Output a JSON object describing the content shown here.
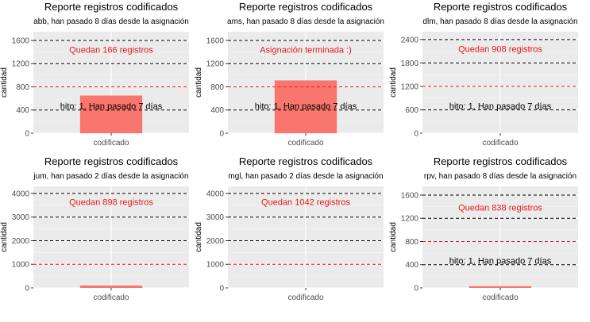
{
  "chart_data": [
    {
      "type": "bar",
      "title": "Reporte registros codificados",
      "subtitle": "abb, han pasado 8 días desde la asignación",
      "xlabel": "",
      "ylabel": "cantidad",
      "categories": [
        "codificado"
      ],
      "values": [
        650
      ],
      "ylim": [
        0,
        1750
      ],
      "yticks": [
        0,
        400,
        800,
        1200,
        1600
      ],
      "ytick_labels": [
        "0",
        "400",
        "800",
        "1200",
        "1600"
      ],
      "hlines_black": [
        400,
        1200,
        1600
      ],
      "hlines_red": [
        800
      ],
      "status_text": "Quedan 166 registros",
      "status_y": 1440,
      "hito_text": "hito: 1. Han pasado 7 días",
      "hito_y": 470,
      "bar_color": "#F8766D",
      "panel_bg": "#EBEBEB",
      "red_color": "#E41A1C",
      "grid": true
    },
    {
      "type": "bar",
      "title": "Reporte registros codificados",
      "subtitle": "ams, han pasado 8 días desde la asignación",
      "xlabel": "",
      "ylabel": "cantidad",
      "categories": [
        "codificado"
      ],
      "values": [
        910
      ],
      "ylim": [
        0,
        1750
      ],
      "yticks": [
        0,
        400,
        800,
        1200,
        1600
      ],
      "ytick_labels": [
        "0",
        "400",
        "800",
        "1200",
        "1600"
      ],
      "hlines_black": [
        400,
        1200,
        1600
      ],
      "hlines_red": [
        800
      ],
      "status_text": "Asignación terminada :)",
      "status_y": 1440,
      "hito_text": "hito: 1. Han pasado 7 días",
      "hito_y": 470,
      "bar_color": "#F8766D",
      "panel_bg": "#EBEBEB",
      "red_color": "#E41A1C",
      "grid": true
    },
    {
      "type": "bar",
      "title": "Reporte registros codificados",
      "subtitle": "dlm, han pasado 8 días desde la asignación",
      "xlabel": "",
      "ylabel": "cantidad",
      "categories": [
        "codificado"
      ],
      "values": [
        0
      ],
      "ylim": [
        0,
        2600
      ],
      "yticks": [
        0,
        600,
        1200,
        1800,
        2400
      ],
      "ytick_labels": [
        "0",
        "600",
        "1200",
        "1800",
        "2400"
      ],
      "hlines_black": [
        600,
        1800,
        2400
      ],
      "hlines_red": [
        1200
      ],
      "status_text": "Quedan 908 registros",
      "status_y": 2160,
      "hito_text": "hito: 1. Han pasado 7 días",
      "hito_y": 700,
      "bar_color": "#F8766D",
      "panel_bg": "#EBEBEB",
      "red_color": "#E41A1C",
      "grid": true
    },
    {
      "type": "bar",
      "title": "Reporte registros codificados",
      "subtitle": "jum, han pasado 2 días desde la asignación",
      "xlabel": "",
      "ylabel": "cantidad",
      "categories": [
        "codificado"
      ],
      "values": [
        100
      ],
      "ylim": [
        0,
        4300
      ],
      "yticks": [
        0,
        1000,
        2000,
        3000,
        4000
      ],
      "ytick_labels": [
        "0",
        "1000",
        "2000",
        "3000",
        "4000"
      ],
      "hlines_black": [
        2000,
        3000,
        4000
      ],
      "hlines_red": [
        1000
      ],
      "status_text": "Quedan 898 registros",
      "status_y": 3650,
      "hito_text": "",
      "hito_y": 0,
      "bar_color": "#F8766D",
      "panel_bg": "#EBEBEB",
      "red_color": "#E41A1C",
      "grid": true
    },
    {
      "type": "bar",
      "title": "Reporte registros codificados",
      "subtitle": "mgl, han pasado 2 días desde la asignación",
      "xlabel": "",
      "ylabel": "cantidad",
      "categories": [
        "codificado"
      ],
      "values": [
        0
      ],
      "ylim": [
        0,
        4300
      ],
      "yticks": [
        0,
        1000,
        2000,
        3000,
        4000
      ],
      "ytick_labels": [
        "0",
        "1000",
        "2000",
        "3000",
        "4000"
      ],
      "hlines_black": [
        2000,
        3000,
        4000
      ],
      "hlines_red": [
        1000
      ],
      "status_text": "Quedan 1042 registros",
      "status_y": 3650,
      "hito_text": "",
      "hito_y": 0,
      "bar_color": "#F8766D",
      "panel_bg": "#EBEBEB",
      "red_color": "#E41A1C",
      "grid": true
    },
    {
      "type": "bar",
      "title": "Reporte registros codificados",
      "subtitle": "rpv, han pasado 8 días desde la asignación",
      "xlabel": "",
      "ylabel": "cantidad",
      "categories": [
        "codificado"
      ],
      "values": [
        30
      ],
      "ylim": [
        0,
        1750
      ],
      "yticks": [
        0,
        400,
        800,
        1200,
        1600
      ],
      "ytick_labels": [
        "0",
        "400",
        "800",
        "1200",
        "1600"
      ],
      "hlines_black": [
        400,
        1200,
        1600
      ],
      "hlines_red": [
        800
      ],
      "status_text": "Quedan 838 registros",
      "status_y": 1390,
      "hito_text": "hito: 1. Han pasado 7 días",
      "hito_y": 470,
      "bar_color": "#F8766D",
      "panel_bg": "#EBEBEB",
      "red_color": "#E41A1C",
      "grid": true
    }
  ]
}
